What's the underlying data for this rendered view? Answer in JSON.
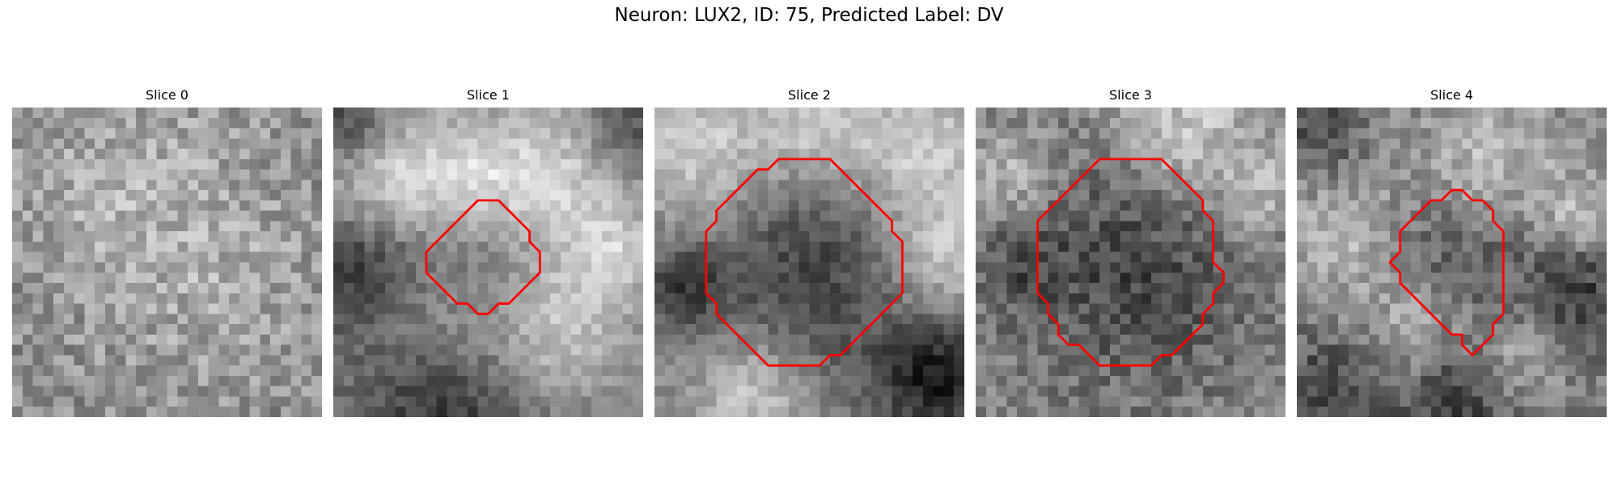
{
  "figure": {
    "title": "Neuron: LUX2, ID: 75, Predicted Label: DV",
    "outline_color": "#ff0000",
    "colormap": "gray"
  },
  "panels": [
    {
      "title": "Slice 0",
      "has_outline": false,
      "outline": [],
      "bright_blobs": [
        {
          "cx": 14,
          "cy": 10,
          "r": 9,
          "amp": 0.1
        },
        {
          "cx": 8,
          "cy": 6,
          "r": 6,
          "amp": 0.06
        },
        {
          "cx": 20,
          "cy": 18,
          "r": 7,
          "amp": 0.06
        }
      ],
      "dark_blobs": [],
      "base": 0.55,
      "noise": 0.3
    },
    {
      "title": "Slice 1",
      "has_outline": true,
      "outline": [
        [
          11,
          12
        ],
        [
          12,
          11
        ],
        [
          13,
          10
        ],
        [
          14,
          9
        ],
        [
          15,
          9
        ],
        [
          16,
          9
        ],
        [
          17,
          10
        ],
        [
          18,
          11
        ],
        [
          19,
          12
        ],
        [
          19,
          13
        ],
        [
          20,
          14
        ],
        [
          20,
          15
        ],
        [
          20,
          16
        ],
        [
          19,
          17
        ],
        [
          18,
          18
        ],
        [
          17,
          19
        ],
        [
          16,
          19
        ],
        [
          15,
          20
        ],
        [
          14,
          20
        ],
        [
          13,
          19
        ],
        [
          12,
          19
        ],
        [
          11,
          18
        ],
        [
          10,
          17
        ],
        [
          9,
          16
        ],
        [
          9,
          15
        ],
        [
          9,
          14
        ],
        [
          10,
          13
        ]
      ],
      "bright_blobs": [
        {
          "cx": 5,
          "cy": 6,
          "r": 5,
          "amp": 0.3
        },
        {
          "cx": 21,
          "cy": 7,
          "r": 6,
          "amp": 0.32
        },
        {
          "cx": 13,
          "cy": 7,
          "r": 4,
          "amp": 0.22
        },
        {
          "cx": 10,
          "cy": 21,
          "r": 5,
          "amp": 0.25
        },
        {
          "cx": 21,
          "cy": 21,
          "r": 5,
          "amp": 0.28
        },
        {
          "cx": 27,
          "cy": 14,
          "r": 3,
          "amp": 0.2
        }
      ],
      "dark_blobs": [
        {
          "cx": 14,
          "cy": 14,
          "r": 5,
          "amp": 0.2
        },
        {
          "cx": 2,
          "cy": 15,
          "r": 4,
          "amp": 0.3
        },
        {
          "cx": 10,
          "cy": 27,
          "r": 6,
          "amp": 0.35
        },
        {
          "cx": 1,
          "cy": 1,
          "r": 3,
          "amp": 0.3
        },
        {
          "cx": 28,
          "cy": 2,
          "r": 3,
          "amp": 0.25
        }
      ],
      "base": 0.5,
      "noise": 0.18
    },
    {
      "title": "Slice 2",
      "has_outline": true,
      "outline": [
        [
          6,
          10
        ],
        [
          7,
          9
        ],
        [
          8,
          8
        ],
        [
          9,
          7
        ],
        [
          10,
          6
        ],
        [
          11,
          6
        ],
        [
          12,
          5
        ],
        [
          13,
          5
        ],
        [
          14,
          5
        ],
        [
          15,
          5
        ],
        [
          16,
          5
        ],
        [
          17,
          5
        ],
        [
          18,
          6
        ],
        [
          19,
          7
        ],
        [
          20,
          8
        ],
        [
          21,
          9
        ],
        [
          22,
          10
        ],
        [
          23,
          11
        ],
        [
          23,
          12
        ],
        [
          24,
          13
        ],
        [
          24,
          14
        ],
        [
          24,
          15
        ],
        [
          24,
          16
        ],
        [
          24,
          17
        ],
        [
          24,
          18
        ],
        [
          23,
          19
        ],
        [
          22,
          20
        ],
        [
          21,
          21
        ],
        [
          20,
          22
        ],
        [
          19,
          23
        ],
        [
          18,
          24
        ],
        [
          17,
          24
        ],
        [
          16,
          25
        ],
        [
          15,
          25
        ],
        [
          14,
          25
        ],
        [
          13,
          25
        ],
        [
          12,
          25
        ],
        [
          11,
          25
        ],
        [
          10,
          24
        ],
        [
          9,
          23
        ],
        [
          8,
          22
        ],
        [
          7,
          21
        ],
        [
          6,
          20
        ],
        [
          6,
          19
        ],
        [
          5,
          18
        ],
        [
          5,
          17
        ],
        [
          5,
          16
        ],
        [
          5,
          15
        ],
        [
          5,
          14
        ],
        [
          5,
          13
        ],
        [
          5,
          12
        ],
        [
          6,
          11
        ]
      ],
      "bright_blobs": [
        {
          "cx": 4,
          "cy": 4,
          "r": 5,
          "amp": 0.3
        },
        {
          "cx": 25,
          "cy": 4,
          "r": 5,
          "amp": 0.3
        },
        {
          "cx": 15,
          "cy": 2,
          "r": 4,
          "amp": 0.25
        },
        {
          "cx": 9,
          "cy": 27,
          "r": 4,
          "amp": 0.28
        },
        {
          "cx": 27,
          "cy": 14,
          "r": 4,
          "amp": 0.28
        }
      ],
      "dark_blobs": [
        {
          "cx": 15,
          "cy": 15,
          "r": 9,
          "amp": 0.28
        },
        {
          "cx": 27,
          "cy": 26,
          "r": 4,
          "amp": 0.4
        },
        {
          "cx": 2,
          "cy": 17,
          "r": 3,
          "amp": 0.25
        }
      ],
      "base": 0.55,
      "noise": 0.18
    },
    {
      "title": "Slice 3",
      "has_outline": true,
      "outline": [
        [
          7,
          10
        ],
        [
          8,
          9
        ],
        [
          9,
          8
        ],
        [
          10,
          7
        ],
        [
          11,
          6
        ],
        [
          12,
          5
        ],
        [
          13,
          5
        ],
        [
          14,
          5
        ],
        [
          15,
          5
        ],
        [
          16,
          5
        ],
        [
          17,
          5
        ],
        [
          18,
          5
        ],
        [
          19,
          6
        ],
        [
          20,
          7
        ],
        [
          21,
          8
        ],
        [
          22,
          9
        ],
        [
          22,
          10
        ],
        [
          23,
          11
        ],
        [
          23,
          12
        ],
        [
          23,
          13
        ],
        [
          23,
          14
        ],
        [
          23,
          15
        ],
        [
          24,
          16
        ],
        [
          24,
          17
        ],
        [
          23,
          18
        ],
        [
          23,
          19
        ],
        [
          22,
          20
        ],
        [
          22,
          21
        ],
        [
          21,
          22
        ],
        [
          20,
          23
        ],
        [
          19,
          24
        ],
        [
          18,
          24
        ],
        [
          17,
          25
        ],
        [
          16,
          25
        ],
        [
          15,
          25
        ],
        [
          14,
          25
        ],
        [
          13,
          25
        ],
        [
          12,
          25
        ],
        [
          11,
          24
        ],
        [
          10,
          23
        ],
        [
          9,
          23
        ],
        [
          8,
          22
        ],
        [
          8,
          21
        ],
        [
          7,
          20
        ],
        [
          7,
          19
        ],
        [
          6,
          18
        ],
        [
          6,
          17
        ],
        [
          6,
          16
        ],
        [
          6,
          15
        ],
        [
          6,
          14
        ],
        [
          6,
          13
        ],
        [
          6,
          12
        ],
        [
          6,
          11
        ]
      ],
      "bright_blobs": [
        {
          "cx": 20,
          "cy": 2,
          "r": 5,
          "amp": 0.28
        },
        {
          "cx": 3,
          "cy": 6,
          "r": 3,
          "amp": 0.22
        },
        {
          "cx": 27,
          "cy": 8,
          "r": 3,
          "amp": 0.2
        }
      ],
      "dark_blobs": [
        {
          "cx": 15,
          "cy": 15,
          "r": 8,
          "amp": 0.25
        },
        {
          "cx": 4,
          "cy": 15,
          "r": 3,
          "amp": 0.15
        }
      ],
      "base": 0.52,
      "noise": 0.26
    },
    {
      "title": "Slice 4",
      "has_outline": true,
      "outline": [
        [
          11,
          11
        ],
        [
          12,
          10
        ],
        [
          13,
          9
        ],
        [
          14,
          9
        ],
        [
          15,
          8
        ],
        [
          16,
          8
        ],
        [
          17,
          9
        ],
        [
          18,
          9
        ],
        [
          19,
          10
        ],
        [
          19,
          11
        ],
        [
          20,
          12
        ],
        [
          20,
          13
        ],
        [
          20,
          14
        ],
        [
          20,
          15
        ],
        [
          20,
          16
        ],
        [
          20,
          17
        ],
        [
          20,
          18
        ],
        [
          20,
          19
        ],
        [
          20,
          20
        ],
        [
          19,
          21
        ],
        [
          19,
          22
        ],
        [
          18,
          23
        ],
        [
          17,
          24
        ],
        [
          16,
          23
        ],
        [
          16,
          22
        ],
        [
          15,
          22
        ],
        [
          14,
          21
        ],
        [
          13,
          20
        ],
        [
          12,
          19
        ],
        [
          11,
          18
        ],
        [
          10,
          17
        ],
        [
          10,
          16
        ],
        [
          9,
          15
        ],
        [
          10,
          14
        ],
        [
          10,
          13
        ],
        [
          10,
          12
        ]
      ],
      "bright_blobs": [
        {
          "cx": 4,
          "cy": 12,
          "r": 4,
          "amp": 0.25
        },
        {
          "cx": 18,
          "cy": 4,
          "r": 5,
          "amp": 0.22
        },
        {
          "cx": 27,
          "cy": 10,
          "r": 3,
          "amp": 0.25
        },
        {
          "cx": 11,
          "cy": 21,
          "r": 4,
          "amp": 0.25
        },
        {
          "cx": 21,
          "cy": 24,
          "r": 3,
          "amp": 0.2
        }
      ],
      "dark_blobs": [
        {
          "cx": 14,
          "cy": 15,
          "r": 5,
          "amp": 0.18
        },
        {
          "cx": 3,
          "cy": 27,
          "r": 4,
          "amp": 0.25
        },
        {
          "cx": 15,
          "cy": 28,
          "r": 4,
          "amp": 0.3
        },
        {
          "cx": 27,
          "cy": 17,
          "r": 4,
          "amp": 0.25
        },
        {
          "cx": 2,
          "cy": 2,
          "r": 3,
          "amp": 0.2
        }
      ],
      "base": 0.5,
      "noise": 0.26
    }
  ]
}
